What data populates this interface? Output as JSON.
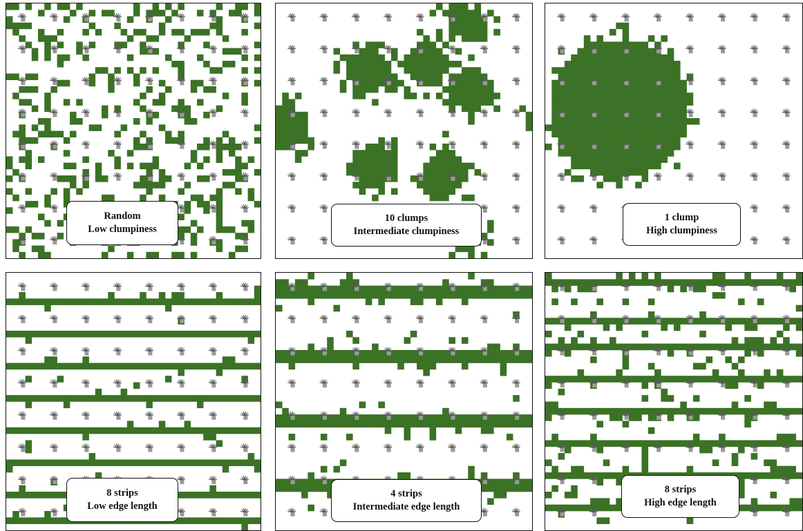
{
  "colors": {
    "vegetation": "#3b7226",
    "tree_dark": "#5a5a5a",
    "tree_light": "#9a9a9a",
    "border": "#111111"
  },
  "tree_icon": "tree-sapling-icon",
  "panels": [
    {
      "id": "random",
      "line1": "Random",
      "line2": "Low clumpiness",
      "pattern": "random",
      "seed": 11
    },
    {
      "id": "10-clumps",
      "line1": "10 clumps",
      "line2": "Intermediate clumpiness",
      "pattern": "clumps10",
      "seed": 23
    },
    {
      "id": "1-clump",
      "line1": "1 clump",
      "line2": "High clumpiness",
      "pattern": "clump1",
      "seed": 37
    },
    {
      "id": "8-strips-low",
      "line1": "8 strips",
      "line2": "Low edge length",
      "pattern": "strips8low",
      "seed": 41
    },
    {
      "id": "4-strips",
      "line1": "4 strips",
      "line2": "Intermediate edge length",
      "pattern": "strips4",
      "seed": 53
    },
    {
      "id": "8-strips-high",
      "line1": "8 strips",
      "line2": "High edge length",
      "pattern": "strips8high",
      "seed": 67
    }
  ]
}
